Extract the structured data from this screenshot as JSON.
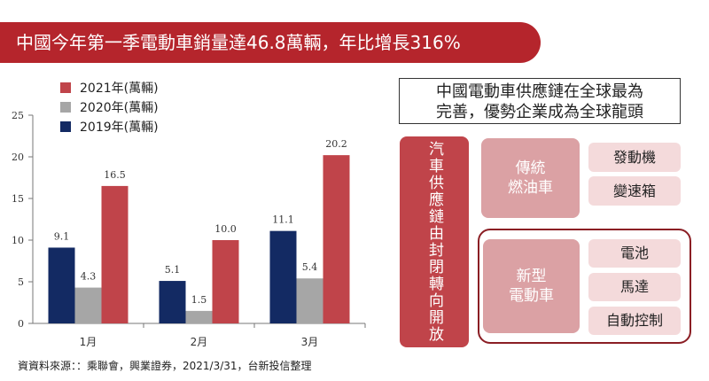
{
  "header": {
    "title": "中國今年第一季電動車銷量達46.8萬輛，年比增長316%"
  },
  "chart_data": {
    "type": "bar",
    "categories": [
      "1月",
      "2月",
      "3月"
    ],
    "series": [
      {
        "name": "2019年(萬輛)",
        "values": [
          9.1,
          5.1,
          11.1
        ]
      },
      {
        "name": "2020年(萬輛)",
        "values": [
          4.3,
          1.5,
          5.4
        ]
      },
      {
        "name": "2021年(萬輛)",
        "values": [
          16.5,
          10.0,
          20.2
        ]
      }
    ],
    "value_labels": [
      [
        "9.1",
        "5.1",
        "11.1"
      ],
      [
        "4.3",
        "1.5",
        "5.4"
      ],
      [
        "16.5",
        "10.0",
        "20.2"
      ]
    ],
    "y_ticks": [
      "0",
      "5",
      "10",
      "15",
      "20",
      "25"
    ],
    "ylim": [
      0,
      25
    ],
    "legend_order": [
      2,
      1,
      0
    ],
    "legend_position": "top-left",
    "colors": [
      "#132a63",
      "#a6a6a6",
      "#c0444a"
    ],
    "grid": false
  },
  "source": "資資料來源：：乘聯會，興業證券，2021/3/31，台新投信整理",
  "diagram": {
    "headline_line1": "中國電動車供應鏈在全球最為",
    "headline_line2": "完善，優勢企業成為全球龍頭",
    "left_label": "汽車供應鏈由封閉轉向開放",
    "traditional": {
      "line1": "傳統",
      "line2": "燃油車"
    },
    "traditional_items": [
      "發動機",
      "變速箱"
    ],
    "new_energy": {
      "line1": "新型",
      "line2": "電動車"
    },
    "new_energy_items": [
      "電池",
      "馬達",
      "自動控制"
    ],
    "colors": {
      "banner": "#b5252c",
      "left": "#c0444a",
      "mid": "#dba1a4",
      "item": "#f4dadb",
      "frame": "#8b1e24"
    }
  }
}
